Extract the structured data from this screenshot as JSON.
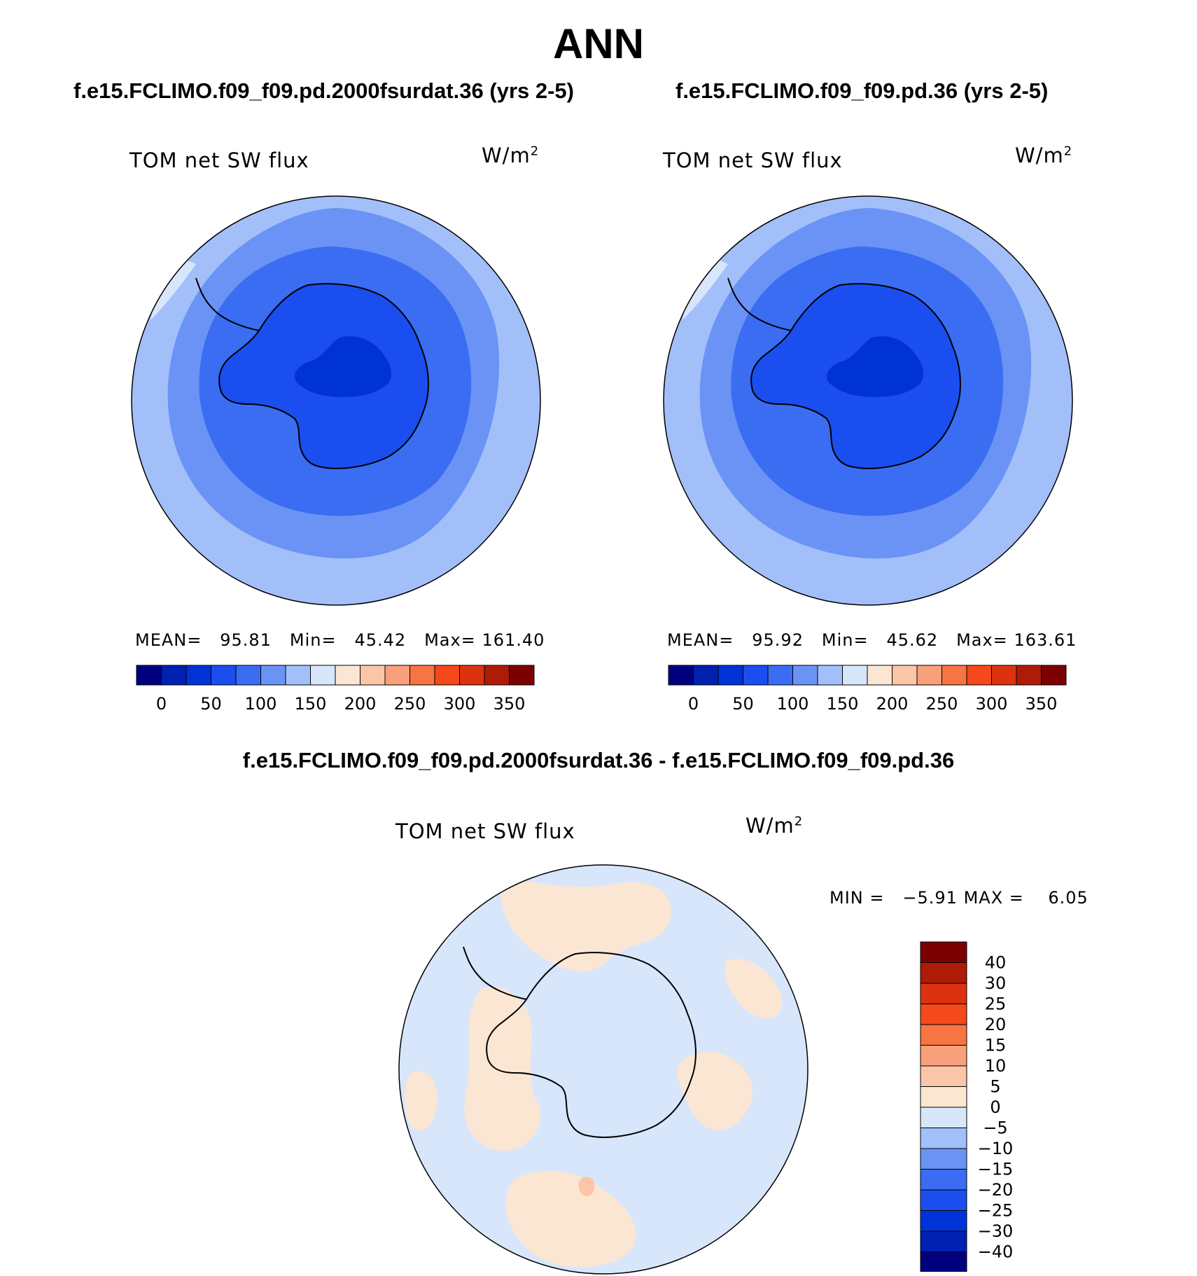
{
  "page": {
    "title": "ANN"
  },
  "panels": [
    {
      "case_title": "f.e15.FCLIMO.f09_f09.pd.2000fsurdat.36 (yrs 2-5)",
      "variable": "TOM net SW flux",
      "units_base": "W/m",
      "units_exp": "2",
      "stats": {
        "mean_label": "MEAN=",
        "mean_value": "95.81",
        "min_label": "Min=",
        "min_value": "45.42",
        "max_label": "Max=",
        "max_value": "161.40"
      }
    },
    {
      "case_title": "f.e15.FCLIMO.f09_f09.pd.36 (yrs 2-5)",
      "variable": "TOM net SW flux",
      "units_base": "W/m",
      "units_exp": "2",
      "stats": {
        "mean_label": "MEAN=",
        "mean_value": "95.92",
        "min_label": "Min=",
        "min_value": "45.62",
        "max_label": "Max=",
        "max_value": "163.61"
      }
    }
  ],
  "abs_colorbar": {
    "colors": [
      "#00007f",
      "#0020b0",
      "#0033d6",
      "#1a4eef",
      "#3a6df2",
      "#6a93f5",
      "#a3bff9",
      "#d7e6fb",
      "#fbe6d4",
      "#fbc6a7",
      "#f8a07c",
      "#f77443",
      "#f5481b",
      "#dd3210",
      "#ae1c08",
      "#7d0000"
    ],
    "labels": [
      "0",
      "50",
      "100",
      "150",
      "200",
      "250",
      "300",
      "350"
    ]
  },
  "diff_panel": {
    "title": "f.e15.FCLIMO.f09_f09.pd.2000fsurdat.36 - f.e15.FCLIMO.f09_f09.pd.36",
    "variable": "TOM net SW flux",
    "units_base": "W/m",
    "units_exp": "2",
    "stats": {
      "min_label": "MIN =",
      "min_value": "−5.91",
      "max_label": "MAX =",
      "max_value": "6.05"
    }
  },
  "diff_colorbar": {
    "colors_top_to_bottom": [
      "#7d0000",
      "#ae1c08",
      "#dd3210",
      "#f5481b",
      "#f77443",
      "#f8a07c",
      "#fbc6a7",
      "#fbe6d4",
      "#d7e6fb",
      "#a3bff9",
      "#6a93f5",
      "#3a6df2",
      "#1a4eef",
      "#0033d6",
      "#0020b0",
      "#00007f"
    ],
    "labels": [
      "40",
      "30",
      "25",
      "20",
      "15",
      "10",
      "5",
      "0",
      "−5",
      "−10",
      "−15",
      "−20",
      "−25",
      "−30",
      "−40"
    ]
  },
  "map_colors": {
    "abs_outer": "#a3bff9",
    "abs_mid": "#6a93f5",
    "abs_inner": "#3a6df2",
    "abs_land": "#1a4eef",
    "abs_core": "#0033d6",
    "abs_highlight": "#d7e6fb",
    "diff_neg": "#d7e6fb",
    "diff_pos": "#fbe6d4",
    "diff_warm": "#fbc6a7",
    "diff_cool": "#a3bff9",
    "coast": "#000000"
  }
}
